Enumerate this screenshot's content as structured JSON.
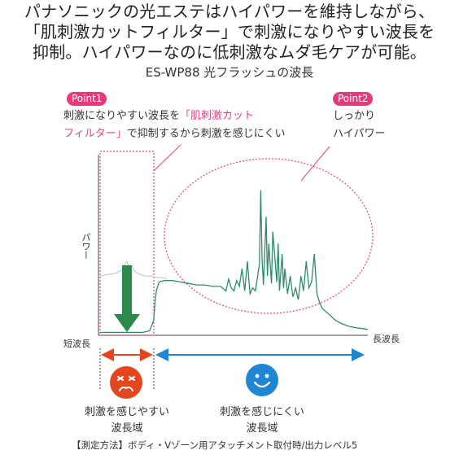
{
  "headline": {
    "line1": "パナソニックの光エステはハイパワーを維持しながら、",
    "line2": "「肌刺激カットフィルター」で刺激になりやすい波長を",
    "line3": "抑制。ハイパワーなのに低刺激なムダ毛ケアが可能。"
  },
  "chart_data": {
    "type": "line",
    "title": "ES-WP88 光フラッシュの波長",
    "xlabel_left": "短波長",
    "xlabel_right": "長波長",
    "ylabel": "パワー",
    "x_range": [
      0,
      1
    ],
    "y_range": [
      0,
      1
    ],
    "grid": false,
    "series": [
      {
        "name": "",
        "style": "filtered-out (thin gray)",
        "color": "#bfbfbf",
        "x": [
          0.0,
          0.03,
          0.06,
          0.08,
          0.09,
          0.1,
          0.11,
          0.12,
          0.13,
          0.14,
          0.15,
          0.17,
          0.19,
          0.21,
          0.23,
          0.25
        ],
        "y": [
          0.4,
          0.41,
          0.42,
          0.44,
          0.47,
          0.5,
          0.45,
          0.47,
          0.43,
          0.42,
          0.41,
          0.4,
          0.4,
          0.39,
          0.39,
          0.38
        ]
      },
      {
        "name": "",
        "style": "emitted (green)",
        "color": "#2e8b6e",
        "x": [
          0.0,
          0.04,
          0.08,
          0.12,
          0.16,
          0.185,
          0.2,
          0.205,
          0.21,
          0.22,
          0.24,
          0.27,
          0.3,
          0.33,
          0.36,
          0.39,
          0.42,
          0.45,
          0.47,
          0.48,
          0.49,
          0.5,
          0.51,
          0.52,
          0.53,
          0.54,
          0.55,
          0.56,
          0.57,
          0.58,
          0.59,
          0.595,
          0.6,
          0.605,
          0.61,
          0.62,
          0.625,
          0.63,
          0.64,
          0.645,
          0.65,
          0.66,
          0.665,
          0.67,
          0.68,
          0.685,
          0.69,
          0.7,
          0.71,
          0.72,
          0.73,
          0.74,
          0.75,
          0.76,
          0.77,
          0.78,
          0.79,
          0.8,
          0.81,
          0.82,
          0.83,
          0.85,
          0.88,
          0.9,
          0.93,
          0.96,
          1.0
        ],
        "y": [
          0.02,
          0.02,
          0.02,
          0.02,
          0.02,
          0.03,
          0.1,
          0.22,
          0.3,
          0.36,
          0.37,
          0.37,
          0.36,
          0.35,
          0.34,
          0.34,
          0.33,
          0.33,
          0.3,
          0.38,
          0.32,
          0.3,
          0.37,
          0.33,
          0.45,
          0.3,
          0.5,
          0.28,
          0.32,
          0.3,
          0.42,
          0.48,
          0.98,
          0.52,
          0.34,
          0.8,
          0.4,
          0.62,
          0.35,
          0.7,
          0.58,
          0.36,
          0.62,
          0.3,
          0.55,
          0.32,
          0.45,
          0.28,
          0.4,
          0.26,
          0.32,
          0.24,
          0.4,
          0.3,
          0.5,
          0.32,
          0.36,
          0.55,
          0.28,
          0.22,
          0.18,
          0.15,
          0.1,
          0.08,
          0.06,
          0.05,
          0.04
        ]
      }
    ],
    "annotations": {
      "point1": {
        "badge": "Point1",
        "text_line1_prefix": "刺激になりやすい波長を",
        "text_line1_highlight": "「肌刺激カットフィルター」",
        "text_line1_highlight_a": "「肌刺激カット",
        "text_line2_highlight_b": "フィルター」",
        "text_line2_rest": "で抑制するから刺激を感じにくい"
      },
      "point2": {
        "badge": "Point2",
        "text_line1": "しっかり",
        "text_line2": "ハイパワー"
      }
    }
  },
  "regions": {
    "left_label_line1": "刺激を感じやすい",
    "left_label_line2": "波長域",
    "right_label_line1": "刺激を感じにくい",
    "right_label_line2": "波長域"
  },
  "colors": {
    "pink": "#e8397d",
    "green": "#2e8b6e",
    "arrow_green": "#2b8a4a",
    "orange": "#e4471f",
    "blue": "#1e86d3"
  },
  "icons": {
    "sad": "sad-face-icon",
    "happy": "happy-face-icon"
  },
  "footer": "【測定方法】ボディ・Vゾーン用アタッチメント取付時/出力レベル5"
}
